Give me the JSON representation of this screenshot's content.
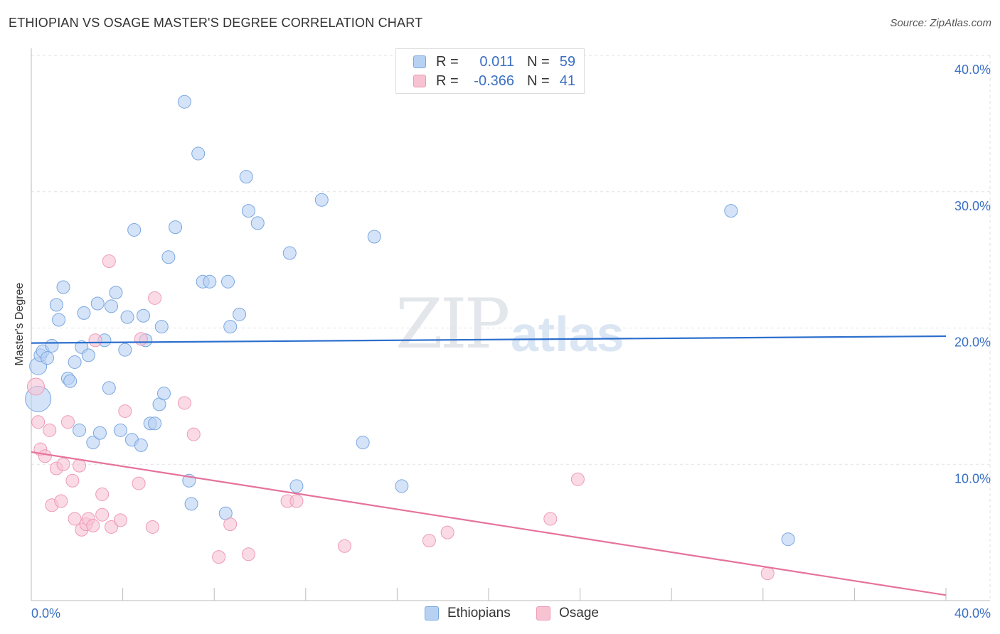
{
  "title": "ETHIOPIAN VS OSAGE MASTER'S DEGREE CORRELATION CHART",
  "source": "Source: ZipAtlas.com",
  "watermark": {
    "zip": "ZIP",
    "atlas": "atlas"
  },
  "colors": {
    "blue_fill": "#b7d1f3",
    "blue_stroke": "#7aa7e0",
    "blue_line": "#2c6fcd",
    "pink_fill": "#f7c3d3",
    "pink_stroke": "#ee9ab5",
    "pink_line": "#e5729c",
    "grid": "#e2e2e2",
    "axis_text": "#3a6fc4"
  },
  "legend": {
    "rows": [
      {
        "r_label": "R =",
        "r_value": "0.011",
        "n_label": "N =",
        "n_value": "59"
      },
      {
        "r_label": "R =",
        "r_value": "-0.366",
        "n_label": "N =",
        "n_value": "41"
      }
    ]
  },
  "bottom_legend": {
    "series1": "Ethiopians",
    "series2": "Osage"
  },
  "chart_data": {
    "type": "scatter",
    "title": "ETHIOPIAN VS OSAGE MASTER'S DEGREE CORRELATION CHART",
    "xlabel": "",
    "ylabel": "Master's Degree",
    "xlim": [
      0,
      40
    ],
    "ylim": [
      0,
      40
    ],
    "x_tick_labels": [
      "0.0%",
      "40.0%"
    ],
    "y_tick_labels": [
      "10.0%",
      "20.0%",
      "30.0%",
      "40.0%"
    ],
    "y_ticks": [
      10,
      20,
      30,
      40
    ],
    "grid": true,
    "series": [
      {
        "name": "Ethiopians",
        "r": 0.011,
        "n": 59,
        "trend": {
          "x": [
            0,
            40
          ],
          "y": [
            18.9,
            19.4
          ]
        },
        "points": [
          [
            0.3,
            14.8,
            "big"
          ],
          [
            0.3,
            17.2,
            "mid"
          ],
          [
            0.4,
            18.0
          ],
          [
            0.5,
            18.3
          ],
          [
            0.7,
            17.8
          ],
          [
            0.9,
            18.7
          ],
          [
            1.1,
            21.7
          ],
          [
            1.2,
            20.6
          ],
          [
            1.4,
            23.0
          ],
          [
            1.6,
            16.3
          ],
          [
            1.7,
            16.1
          ],
          [
            1.9,
            17.5
          ],
          [
            2.1,
            12.5
          ],
          [
            2.2,
            18.6
          ],
          [
            2.3,
            21.1
          ],
          [
            2.5,
            18.0
          ],
          [
            2.7,
            11.6
          ],
          [
            2.9,
            21.8
          ],
          [
            3.0,
            12.3
          ],
          [
            3.2,
            19.1
          ],
          [
            3.4,
            15.6
          ],
          [
            3.5,
            21.6
          ],
          [
            3.7,
            22.6
          ],
          [
            3.9,
            12.5
          ],
          [
            4.1,
            18.4
          ],
          [
            4.2,
            20.8
          ],
          [
            4.4,
            11.8
          ],
          [
            4.5,
            27.2
          ],
          [
            4.8,
            11.4
          ],
          [
            4.9,
            20.9
          ],
          [
            5.0,
            19.1
          ],
          [
            5.2,
            13.0
          ],
          [
            5.4,
            13.0
          ],
          [
            5.6,
            14.4
          ],
          [
            5.7,
            20.1
          ],
          [
            5.8,
            15.2
          ],
          [
            6.0,
            25.2
          ],
          [
            6.3,
            27.4
          ],
          [
            6.7,
            36.6
          ],
          [
            6.9,
            8.8
          ],
          [
            7.0,
            7.1
          ],
          [
            7.3,
            32.8
          ],
          [
            7.5,
            23.4
          ],
          [
            7.8,
            23.4
          ],
          [
            8.5,
            6.4
          ],
          [
            8.6,
            23.4
          ],
          [
            8.7,
            20.1
          ],
          [
            9.1,
            21.0
          ],
          [
            9.4,
            31.1
          ],
          [
            9.5,
            28.6
          ],
          [
            9.9,
            27.7
          ],
          [
            11.3,
            25.5
          ],
          [
            11.6,
            8.4
          ],
          [
            12.7,
            29.4
          ],
          [
            14.5,
            11.6
          ],
          [
            15.0,
            26.7
          ],
          [
            16.2,
            8.4
          ],
          [
            30.6,
            28.6
          ],
          [
            33.1,
            4.5
          ]
        ]
      },
      {
        "name": "Osage",
        "r": -0.366,
        "n": 41,
        "trend": {
          "x": [
            0,
            40
          ],
          "y": [
            10.9,
            0.4
          ]
        },
        "points": [
          [
            0.2,
            15.7,
            "mid"
          ],
          [
            0.3,
            13.1
          ],
          [
            0.4,
            11.1
          ],
          [
            0.6,
            10.6
          ],
          [
            0.8,
            12.5
          ],
          [
            0.9,
            7.0
          ],
          [
            1.1,
            9.7
          ],
          [
            1.3,
            7.3
          ],
          [
            1.4,
            10.0
          ],
          [
            1.6,
            13.1
          ],
          [
            1.8,
            8.8
          ],
          [
            1.9,
            6.0
          ],
          [
            2.1,
            9.9
          ],
          [
            2.2,
            5.2
          ],
          [
            2.4,
            5.6
          ],
          [
            2.5,
            6.0
          ],
          [
            2.7,
            5.5
          ],
          [
            2.8,
            19.1
          ],
          [
            3.1,
            7.8
          ],
          [
            3.1,
            6.3
          ],
          [
            3.4,
            24.9
          ],
          [
            3.5,
            5.4
          ],
          [
            3.9,
            5.9
          ],
          [
            4.1,
            13.9
          ],
          [
            4.7,
            8.6
          ],
          [
            4.8,
            19.2
          ],
          [
            5.3,
            5.4
          ],
          [
            5.4,
            22.2
          ],
          [
            6.7,
            14.5
          ],
          [
            7.1,
            12.2
          ],
          [
            8.2,
            3.2
          ],
          [
            8.7,
            5.6
          ],
          [
            9.5,
            3.4
          ],
          [
            11.2,
            7.3
          ],
          [
            11.6,
            7.3
          ],
          [
            13.7,
            4.0
          ],
          [
            17.4,
            4.4
          ],
          [
            18.2,
            5.0
          ],
          [
            22.7,
            6.0
          ],
          [
            23.9,
            8.9
          ],
          [
            32.2,
            2.0
          ]
        ]
      }
    ]
  }
}
